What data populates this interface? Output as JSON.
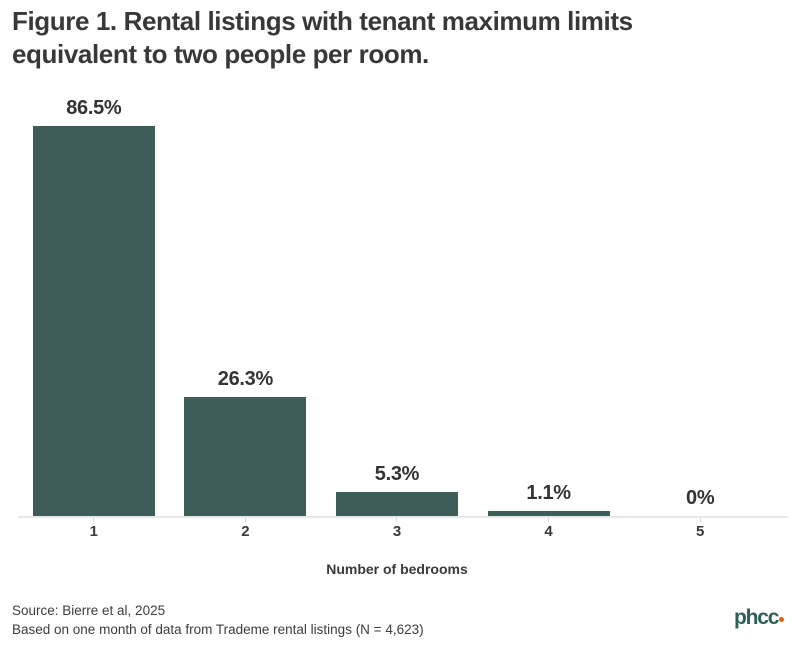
{
  "title": "Figure 1. Rental listings with tenant maximum limits equivalent to two people per room.",
  "chart_data": {
    "type": "bar",
    "title": "Figure 1. Rental listings with tenant maximum limits equivalent to two people per room.",
    "categories": [
      "1",
      "2",
      "3",
      "4",
      "5"
    ],
    "values": [
      86.5,
      26.3,
      5.3,
      1.1,
      0
    ],
    "value_labels": [
      "86.5%",
      "26.3%",
      "5.3%",
      "1.1%",
      "0%"
    ],
    "xlabel": "Number of bedrooms",
    "ylabel": "",
    "ylim": [
      0,
      90
    ],
    "grid": false,
    "legend": false,
    "bar_color": "#3e5c58"
  },
  "footer": {
    "source": "Source: Bierre et al, 2025",
    "basis": "Based on one month of data from Trademe rental listings (N = 4,623)"
  },
  "logo": {
    "text": "phcc",
    "text_color": "#2e5f58",
    "dot_color": "#e8610f"
  },
  "colors": {
    "bar": "#3e5c58",
    "title_text": "#383838",
    "axis_line": "#e7e7e7",
    "tick": "#d8d8d8"
  }
}
